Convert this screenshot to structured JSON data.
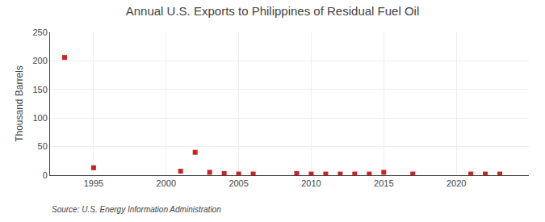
{
  "chart_data": {
    "type": "scatter",
    "title": "Annual U.S. Exports to Philippines of Residual Fuel Oil",
    "ylabel": "Thousand Barrels",
    "source": "Source: U.S. Energy Information Administration",
    "x": [
      1993,
      1995,
      2001,
      2002,
      2003,
      2004,
      2005,
      2006,
      2009,
      2010,
      2011,
      2012,
      2013,
      2014,
      2015,
      2017,
      2021,
      2022,
      2023
    ],
    "values": [
      206,
      13,
      7,
      40,
      5,
      3,
      2,
      2,
      3,
      2,
      2,
      2,
      2,
      2,
      5,
      2,
      2,
      2,
      2
    ],
    "color": "#cc2222",
    "marker": "square",
    "xlim": [
      1992,
      2025
    ],
    "xticks": [
      1995,
      2000,
      2005,
      2010,
      2015,
      2020
    ],
    "ylim": [
      0,
      250
    ],
    "yticks": [
      0,
      50,
      100,
      150,
      200,
      250
    ],
    "grid": true
  }
}
